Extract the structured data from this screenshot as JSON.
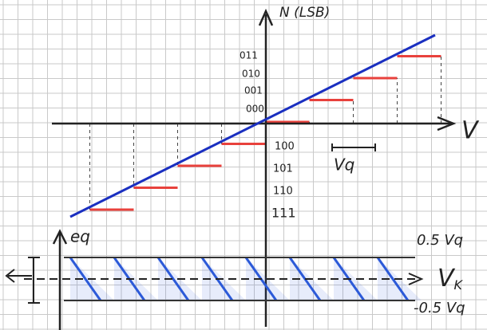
{
  "axis_n": {
    "label": "N (LSB)",
    "codes_positive": [
      "011",
      "010",
      "001",
      "000"
    ],
    "codes_negative": [
      "100",
      "101",
      "110",
      "111"
    ]
  },
  "axis_v": {
    "label": "V"
  },
  "step_width": {
    "label": "Vq"
  },
  "error_plot": {
    "y_label": "eq",
    "x_label": "V",
    "x_label_sub": "K",
    "upper_bound": "0.5 Vq",
    "lower_bound": "-0.5 Vq"
  }
}
